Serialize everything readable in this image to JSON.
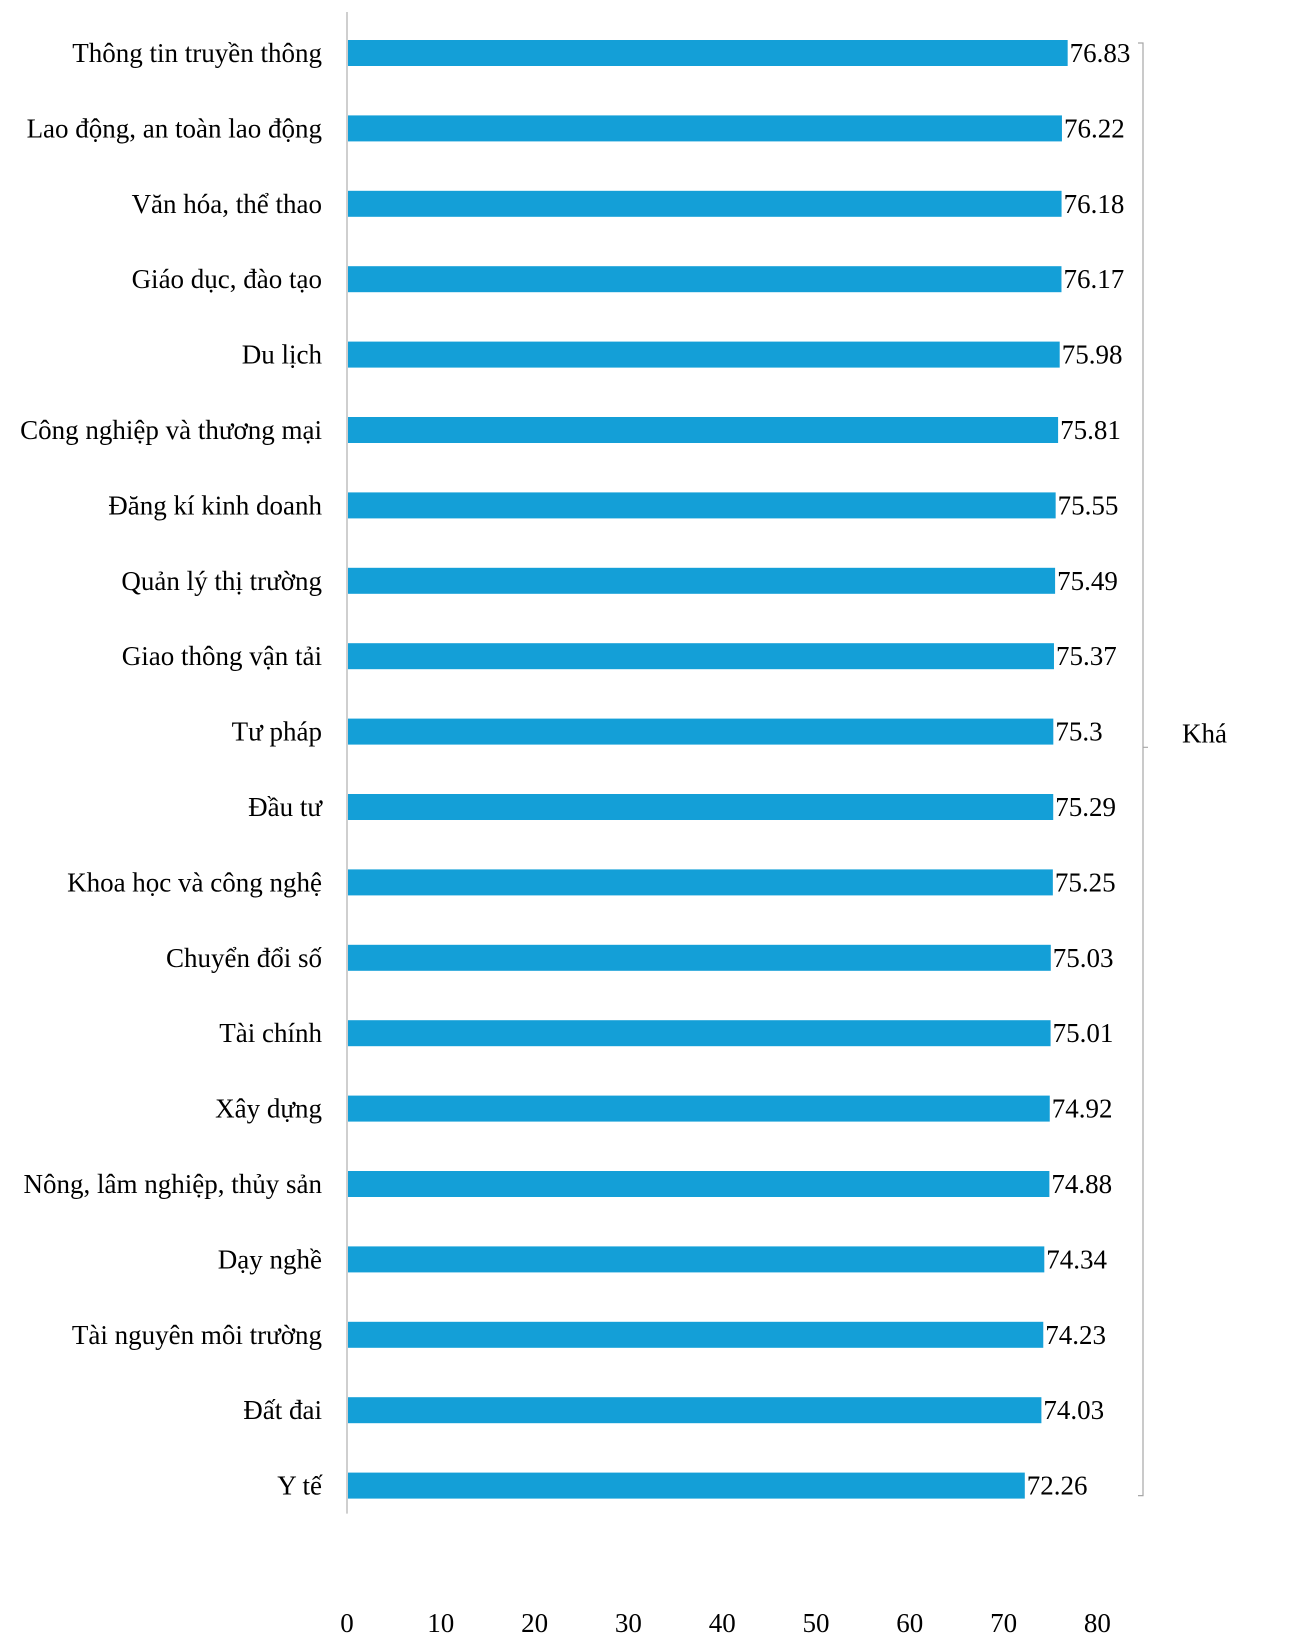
{
  "colors": {
    "bar": "#149FD7",
    "axis": "#BFBFBF",
    "bracket": "#A6A6A6"
  },
  "chart_data": {
    "type": "bar",
    "orientation": "horizontal",
    "categories": [
      "Thông tin truyền thông",
      "Lao động, an toàn lao động",
      "Văn hóa, thể thao",
      "Giáo dục, đào tạo",
      "Du lịch",
      "Công nghiệp và thương mại",
      "Đăng kí kinh doanh",
      "Quản lý thị trường",
      "Giao thông vận tải",
      "Tư pháp",
      "Đầu tư",
      "Khoa học và công nghệ",
      "Chuyển đổi số",
      "Tài chính",
      "Xây dựng",
      "Nông, lâm nghiệp, thủy sản",
      "Dạy nghề",
      "Tài nguyên môi trường",
      "Đất đai",
      "Y tế"
    ],
    "values": [
      76.83,
      76.22,
      76.18,
      76.17,
      75.98,
      75.81,
      75.55,
      75.49,
      75.37,
      75.3,
      75.29,
      75.25,
      75.03,
      75.01,
      74.92,
      74.88,
      74.34,
      74.23,
      74.03,
      72.26
    ],
    "value_labels": [
      "76.83",
      "76.22",
      "76.18",
      "76.17",
      "75.98",
      "75.81",
      "75.55",
      "75.49",
      "75.37",
      "75.3",
      "75.29",
      "75.25",
      "75.03",
      "75.01",
      "74.92",
      "74.88",
      "74.34",
      "74.23",
      "74.03",
      "72.26"
    ],
    "xlim": [
      0,
      80
    ],
    "xticks": [
      "0",
      "10",
      "20",
      "30",
      "40",
      "50",
      "60",
      "70",
      "80"
    ],
    "group_label": "Khá",
    "grid": false,
    "legend": "none"
  }
}
